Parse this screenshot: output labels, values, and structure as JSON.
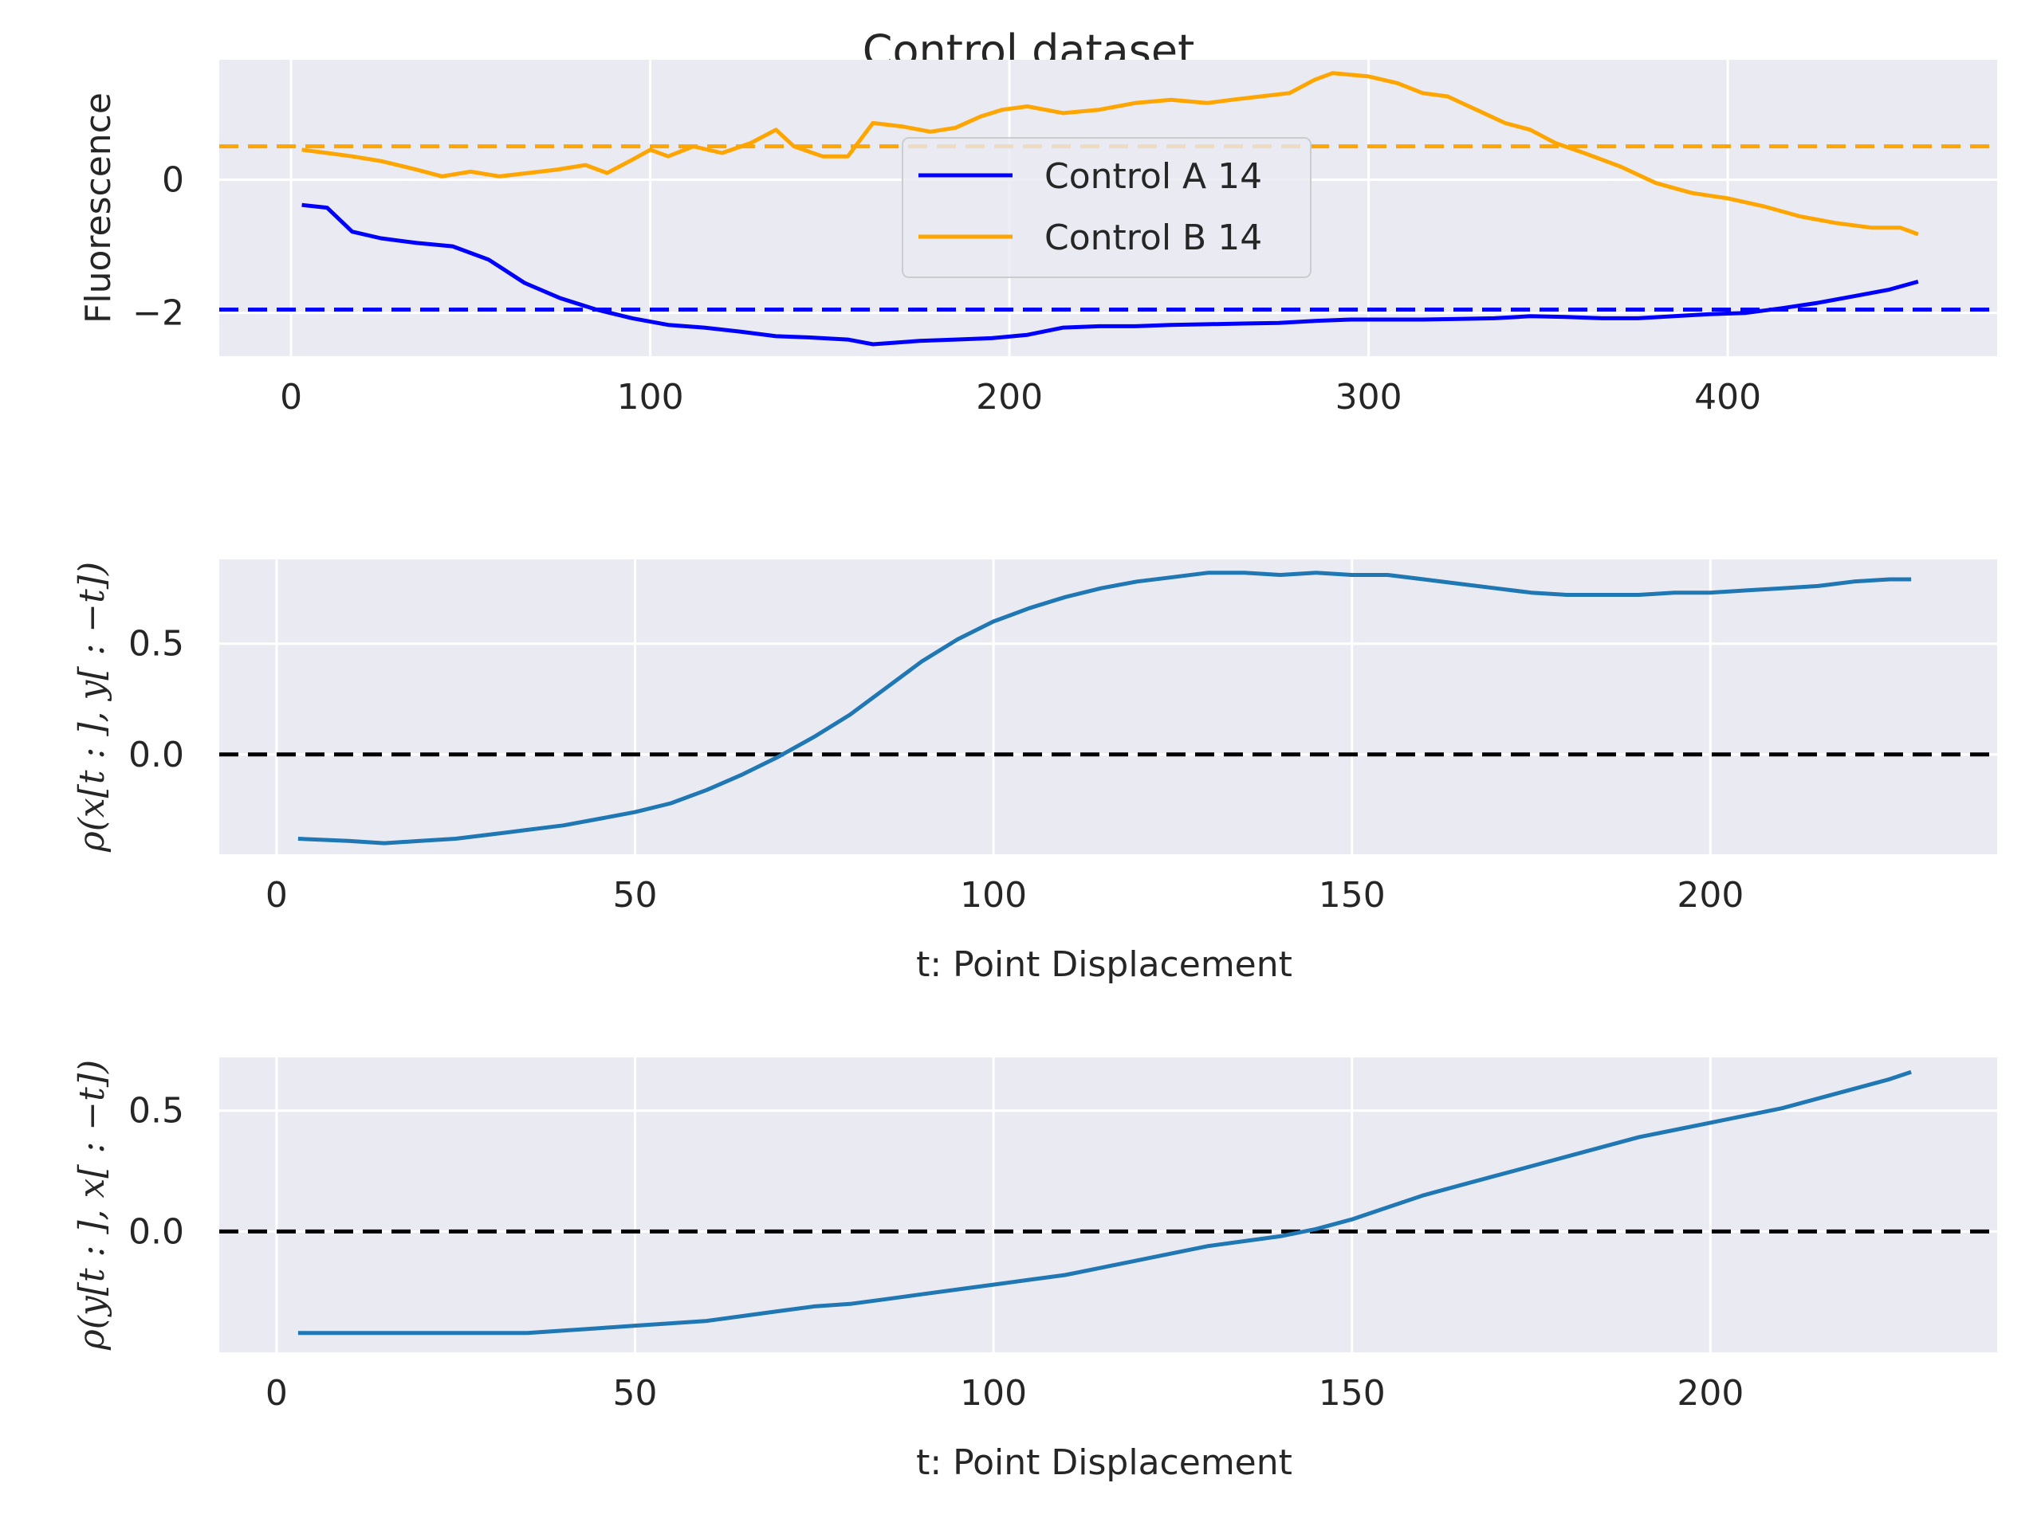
{
  "title": "Control dataset",
  "colors": {
    "panel_bg": "#eaeaf2",
    "grid": "#ffffff",
    "series_a": "#0000ff",
    "series_b": "#ffa500",
    "correlation_line": "#1f77b4",
    "zero_line": "#000000",
    "text": "#262626"
  },
  "chart_data": [
    {
      "type": "line",
      "ylabel": "Fluorescence",
      "xlabel": "",
      "xlim": [
        -20,
        475
      ],
      "ylim": [
        -2.65,
        1.8
      ],
      "xticks": [
        0,
        100,
        200,
        300,
        400
      ],
      "yticks": [
        -2,
        0
      ],
      "ytick_labels": [
        "−2",
        "0"
      ],
      "grid": true,
      "legend": "center",
      "series": [
        {
          "name": "Control A 14",
          "color": "#0000ff",
          "mean": -1.95,
          "x": [
            3,
            10,
            17,
            25,
            35,
            45,
            55,
            65,
            75,
            85,
            95,
            105,
            115,
            125,
            135,
            145,
            155,
            162,
            175,
            185,
            195,
            205,
            215,
            225,
            235,
            245,
            255,
            265,
            275,
            285,
            295,
            305,
            315,
            325,
            335,
            345,
            355,
            365,
            375,
            385,
            395,
            405,
            415,
            425,
            435,
            445,
            453
          ],
          "y": [
            -0.38,
            -0.42,
            -0.78,
            -0.88,
            -0.95,
            -1.0,
            -1.2,
            -1.55,
            -1.78,
            -1.95,
            -2.08,
            -2.18,
            -2.22,
            -2.28,
            -2.35,
            -2.37,
            -2.4,
            -2.47,
            -2.42,
            -2.4,
            -2.38,
            -2.33,
            -2.22,
            -2.2,
            -2.2,
            -2.18,
            -2.17,
            -2.16,
            -2.15,
            -2.12,
            -2.1,
            -2.1,
            -2.1,
            -2.09,
            -2.08,
            -2.05,
            -2.06,
            -2.08,
            -2.08,
            -2.05,
            -2.02,
            -2.0,
            -1.93,
            -1.85,
            -1.75,
            -1.65,
            -1.53
          ]
        },
        {
          "name": "Control B 14",
          "color": "#ffa500",
          "mean": 0.5,
          "x": [
            3,
            10,
            17,
            25,
            35,
            42,
            50,
            58,
            66,
            74,
            82,
            88,
            95,
            100,
            105,
            112,
            120,
            128,
            135,
            140,
            148,
            155,
            162,
            170,
            178,
            185,
            192,
            198,
            205,
            215,
            225,
            235,
            245,
            255,
            262,
            270,
            278,
            285,
            290,
            300,
            308,
            315,
            322,
            330,
            338,
            345,
            352,
            360,
            370,
            380,
            390,
            400,
            410,
            420,
            430,
            440,
            448,
            453
          ],
          "y": [
            0.45,
            0.4,
            0.35,
            0.28,
            0.15,
            0.05,
            0.12,
            0.05,
            0.1,
            0.15,
            0.22,
            0.1,
            0.3,
            0.45,
            0.35,
            0.5,
            0.4,
            0.55,
            0.75,
            0.5,
            0.35,
            0.35,
            0.85,
            0.8,
            0.72,
            0.78,
            0.95,
            1.05,
            1.1,
            1.0,
            1.05,
            1.15,
            1.2,
            1.15,
            1.2,
            1.25,
            1.3,
            1.5,
            1.6,
            1.55,
            1.45,
            1.3,
            1.25,
            1.05,
            0.85,
            0.75,
            0.55,
            0.4,
            0.2,
            -0.05,
            -0.2,
            -0.28,
            -0.4,
            -0.55,
            -0.65,
            -0.72,
            -0.72,
            -0.82
          ]
        }
      ]
    },
    {
      "type": "line",
      "xlabel": "t: Point Displacement",
      "ylabel": "ρ(x[t : ], y[ : −t])",
      "xlim": [
        -8,
        240
      ],
      "ylim": [
        -0.45,
        0.88
      ],
      "xticks": [
        0,
        50,
        100,
        150,
        200
      ],
      "yticks": [
        0.0,
        0.5
      ],
      "ytick_labels": [
        "0.0",
        "0.5"
      ],
      "grid": true,
      "zero_line": 0,
      "series": [
        {
          "color": "#1f77b4",
          "x": [
            3,
            10,
            15,
            20,
            25,
            30,
            35,
            40,
            45,
            50,
            55,
            60,
            65,
            70,
            75,
            80,
            85,
            90,
            95,
            100,
            105,
            110,
            115,
            120,
            125,
            130,
            135,
            140,
            145,
            150,
            155,
            160,
            165,
            170,
            175,
            180,
            185,
            190,
            195,
            200,
            205,
            210,
            215,
            220,
            225,
            228
          ],
          "y": [
            -0.38,
            -0.39,
            -0.4,
            -0.39,
            -0.38,
            -0.36,
            -0.34,
            -0.32,
            -0.29,
            -0.26,
            -0.22,
            -0.16,
            -0.09,
            -0.01,
            0.08,
            0.18,
            0.3,
            0.42,
            0.52,
            0.6,
            0.66,
            0.71,
            0.75,
            0.78,
            0.8,
            0.82,
            0.82,
            0.81,
            0.82,
            0.81,
            0.81,
            0.79,
            0.77,
            0.75,
            0.73,
            0.72,
            0.72,
            0.72,
            0.73,
            0.73,
            0.74,
            0.75,
            0.76,
            0.78,
            0.79,
            0.79
          ]
        }
      ]
    },
    {
      "type": "line",
      "xlabel": "t: Point Displacement",
      "ylabel": "ρ(y[t : ], x[ : −t])",
      "xlim": [
        -8,
        240
      ],
      "ylim": [
        -0.5,
        0.72
      ],
      "xticks": [
        0,
        50,
        100,
        150,
        200
      ],
      "yticks": [
        0.0,
        0.5
      ],
      "ytick_labels": [
        "0.0",
        "0.5"
      ],
      "grid": true,
      "zero_line": 0,
      "series": [
        {
          "color": "#1f77b4",
          "x": [
            3,
            10,
            15,
            20,
            25,
            30,
            35,
            40,
            45,
            50,
            55,
            60,
            65,
            70,
            75,
            80,
            85,
            90,
            95,
            100,
            105,
            110,
            115,
            120,
            125,
            130,
            135,
            140,
            145,
            150,
            155,
            160,
            165,
            170,
            175,
            180,
            185,
            190,
            195,
            200,
            205,
            210,
            215,
            220,
            225,
            228
          ],
          "y": [
            -0.42,
            -0.42,
            -0.42,
            -0.42,
            -0.42,
            -0.42,
            -0.42,
            -0.41,
            -0.4,
            -0.39,
            -0.38,
            -0.37,
            -0.35,
            -0.33,
            -0.31,
            -0.3,
            -0.28,
            -0.26,
            -0.24,
            -0.22,
            -0.2,
            -0.18,
            -0.15,
            -0.12,
            -0.09,
            -0.06,
            -0.04,
            -0.02,
            0.01,
            0.05,
            0.1,
            0.15,
            0.19,
            0.23,
            0.27,
            0.31,
            0.35,
            0.39,
            0.42,
            0.45,
            0.48,
            0.51,
            0.55,
            0.59,
            0.63,
            0.66
          ]
        }
      ]
    }
  ]
}
